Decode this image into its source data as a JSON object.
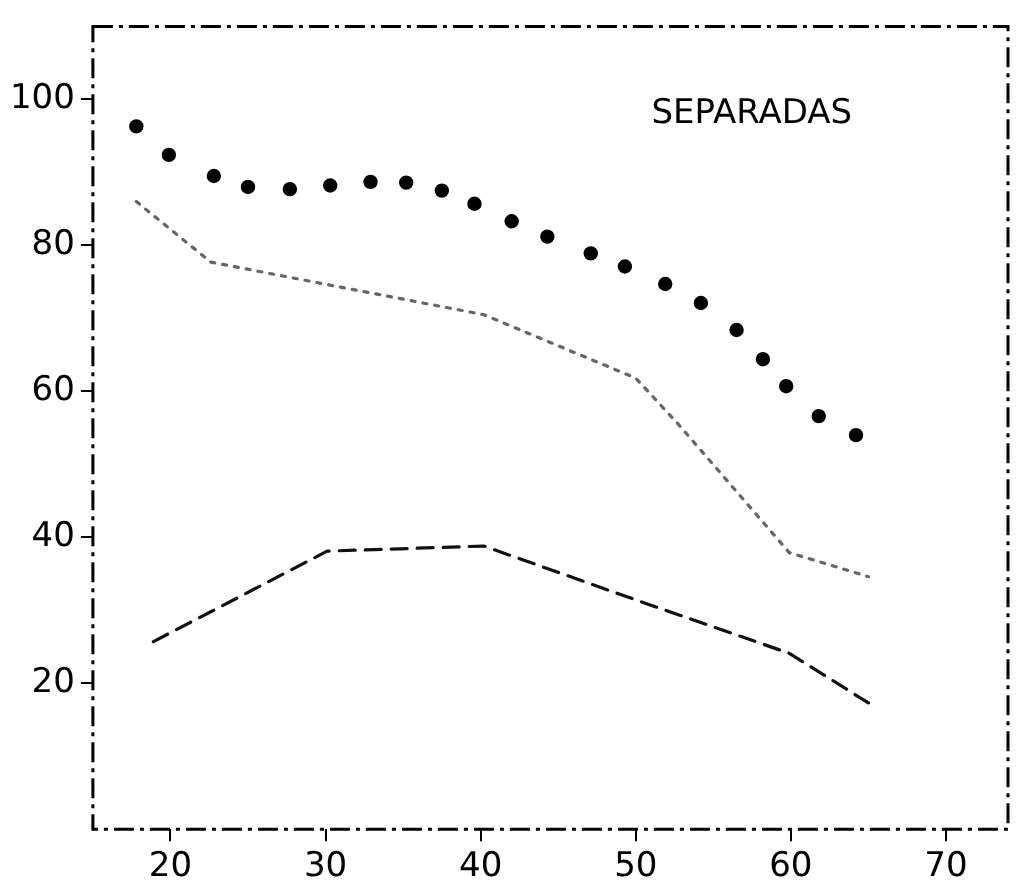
{
  "chart_data": {
    "type": "line",
    "annotations": [
      "SEPARADAS"
    ],
    "xlim": [
      15,
      74
    ],
    "xticks": [
      20,
      30,
      40,
      50,
      60,
      70
    ],
    "ylim": [
      0,
      110
    ],
    "yticks": [
      20,
      40,
      60,
      80,
      100
    ],
    "grid": false,
    "legend": false,
    "series": [
      {
        "type": "scatter",
        "color": "#000000",
        "marker": "circle",
        "x": [
          17.8,
          19.9,
          22.8,
          25.0,
          27.7,
          30.3,
          32.9,
          35.2,
          37.5,
          39.6,
          42.0,
          44.3,
          47.1,
          49.3,
          51.9,
          54.2,
          56.5,
          58.2,
          59.7,
          61.8,
          64.2
        ],
        "values": [
          96.3,
          92.4,
          89.5,
          88.0,
          87.7,
          88.2,
          88.7,
          88.6,
          87.5,
          85.7,
          83.3,
          81.2,
          78.9,
          77.1,
          74.7,
          72.1,
          68.4,
          64.4,
          60.7,
          56.6,
          54.0
        ]
      },
      {
        "color": "#666666",
        "line_style": "dotted",
        "marker": "none",
        "x": [
          17.8,
          22.6,
          40.2,
          50.0,
          52.7,
          59.9,
          65.0
        ],
        "values": [
          86.0,
          77.7,
          70.5,
          61.8,
          55.6,
          37.9,
          34.6
        ]
      },
      {
        "color": "#111111",
        "line_style": "dashed",
        "marker": "none",
        "x": [
          18.9,
          30.1,
          40.2,
          50.3,
          59.9,
          65.0
        ],
        "values": [
          25.7,
          38.1,
          38.8,
          31.2,
          24.1,
          17.3
        ]
      }
    ]
  }
}
